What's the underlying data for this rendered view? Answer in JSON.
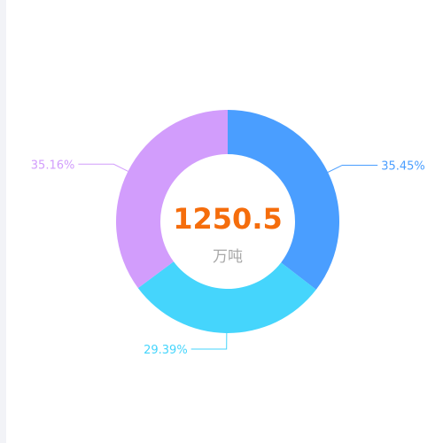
{
  "chart_data": {
    "type": "pie",
    "style": "donut",
    "center_value": "1250.5",
    "center_unit": "万吨",
    "slices": [
      {
        "label": "35.45%",
        "value": 35.45,
        "color": "#4a9eff"
      },
      {
        "label": "29.39%",
        "value": 29.39,
        "color": "#45d5fc"
      },
      {
        "label": "35.16%",
        "value": 35.16,
        "color": "#d29dfc"
      }
    ]
  },
  "colors": {
    "center_value": "#f56d0c",
    "center_unit": "#a8a8a8",
    "background": "#ffffff",
    "left_strip": "#f2f3f7"
  }
}
